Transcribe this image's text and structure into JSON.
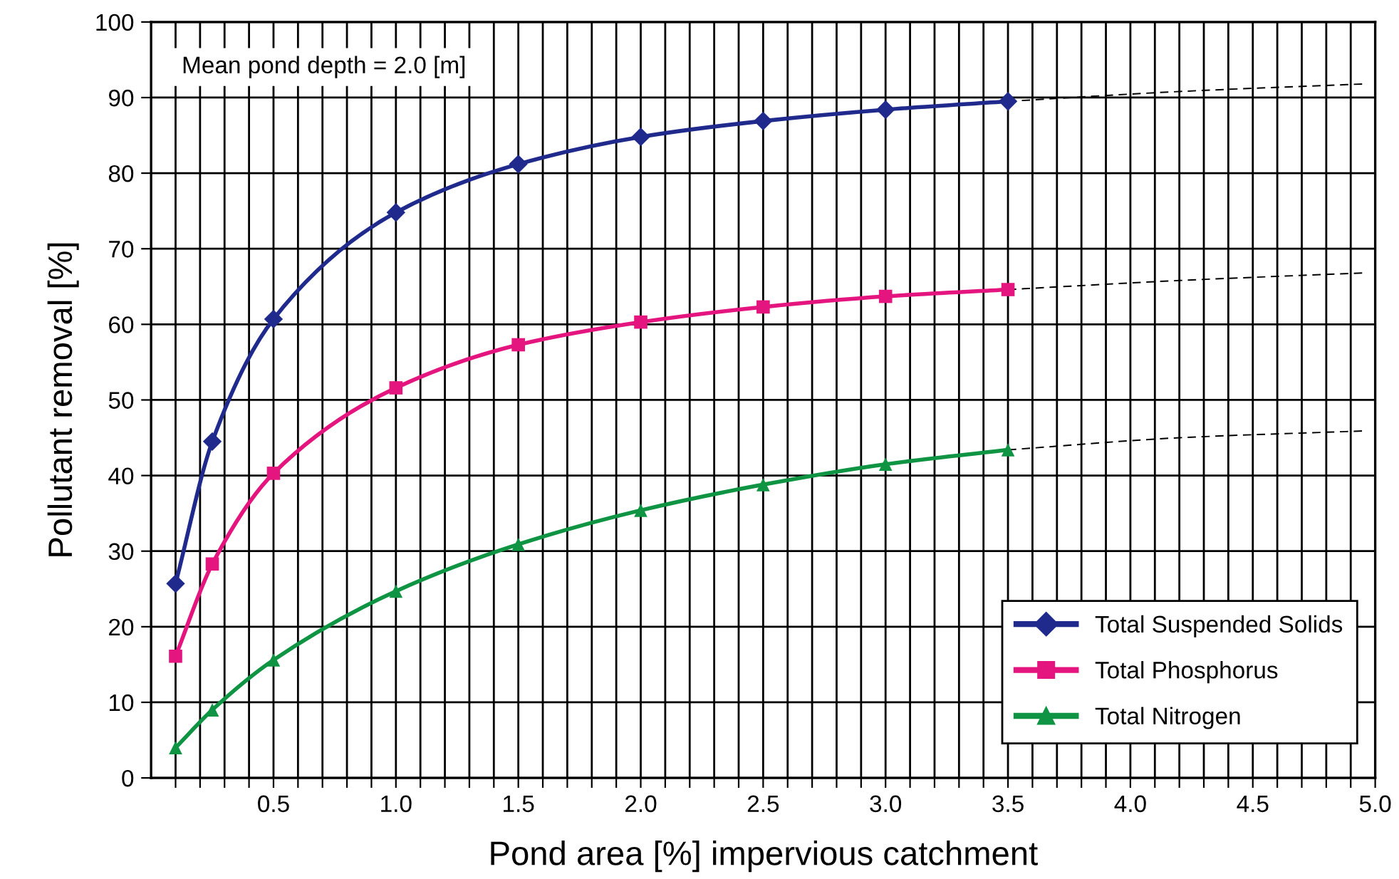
{
  "chart_data": {
    "type": "line",
    "xlabel": "Pond area [%] impervious catchment",
    "ylabel": "Pollutant removal [%]",
    "annotations": [
      "Mean pond depth = 2.0 [m]"
    ],
    "x": [
      0.1,
      0.25,
      0.5,
      1.0,
      1.5,
      2.0,
      2.5,
      3.0,
      3.5
    ],
    "series": [
      {
        "name": "Total Suspended Solids",
        "color": "#1f2a8c",
        "marker": "diamond",
        "values": [
          25.7,
          44.5,
          60.7,
          74.8,
          81.2,
          84.8,
          86.9,
          88.4,
          89.5
        ]
      },
      {
        "name": "Total Phosphorus",
        "color": "#e4157f",
        "marker": "square",
        "values": [
          16.1,
          28.3,
          40.3,
          51.6,
          57.3,
          60.3,
          62.3,
          63.7,
          64.6
        ]
      },
      {
        "name": "Total Nitrogen",
        "color": "#0f9443",
        "marker": "triangle",
        "values": [
          4.0,
          9.0,
          15.6,
          24.7,
          30.9,
          35.4,
          38.8,
          41.5,
          43.4
        ]
      },
      {
        "color": "#000000",
        "line_style": "dashed",
        "marker": "none",
        "x": [
          3.5,
          4.2,
          4.95
        ],
        "values": [
          89.5,
          90.8,
          91.8
        ]
      },
      {
        "color": "#000000",
        "line_style": "dashed",
        "marker": "none",
        "x": [
          3.5,
          4.2,
          4.95
        ],
        "values": [
          64.6,
          65.8,
          66.8
        ]
      },
      {
        "color": "#000000",
        "line_style": "dashed",
        "marker": "none",
        "x": [
          3.5,
          4.2,
          4.95
        ],
        "values": [
          43.4,
          45.0,
          45.9
        ]
      }
    ],
    "xlim": [
      0,
      5
    ],
    "xticks": [
      {
        "value": 0.1,
        "label": null
      },
      {
        "value": 0.2,
        "label": null
      },
      {
        "value": 0.3,
        "label": null
      },
      {
        "value": 0.4,
        "label": null
      },
      {
        "value": 0.5,
        "label": "0.5"
      },
      {
        "value": 0.6,
        "label": null
      },
      {
        "value": 0.7,
        "label": null
      },
      {
        "value": 0.8,
        "label": null
      },
      {
        "value": 0.9,
        "label": null
      },
      {
        "value": 1.0,
        "label": "1.0"
      },
      {
        "value": 1.1,
        "label": null
      },
      {
        "value": 1.2,
        "label": null
      },
      {
        "value": 1.3,
        "label": null
      },
      {
        "value": 1.4,
        "label": null
      },
      {
        "value": 1.5,
        "label": "1.5"
      },
      {
        "value": 1.6,
        "label": null
      },
      {
        "value": 1.7,
        "label": null
      },
      {
        "value": 1.8,
        "label": null
      },
      {
        "value": 1.9,
        "label": null
      },
      {
        "value": 2.0,
        "label": "2.0"
      },
      {
        "value": 2.1,
        "label": null
      },
      {
        "value": 2.2,
        "label": null
      },
      {
        "value": 2.3,
        "label": null
      },
      {
        "value": 2.4,
        "label": null
      },
      {
        "value": 2.5,
        "label": "2.5"
      },
      {
        "value": 2.6,
        "label": null
      },
      {
        "value": 2.7,
        "label": null
      },
      {
        "value": 2.8,
        "label": null
      },
      {
        "value": 2.9,
        "label": null
      },
      {
        "value": 3.0,
        "label": "3.0"
      },
      {
        "value": 3.1,
        "label": null
      },
      {
        "value": 3.2,
        "label": null
      },
      {
        "value": 3.3,
        "label": null
      },
      {
        "value": 3.4,
        "label": null
      },
      {
        "value": 3.5,
        "label": "3.5"
      },
      {
        "value": 3.6,
        "label": null
      },
      {
        "value": 3.7,
        "label": null
      },
      {
        "value": 3.8,
        "label": null
      },
      {
        "value": 3.9,
        "label": null
      },
      {
        "value": 4.0,
        "label": "4.0"
      },
      {
        "value": 4.1,
        "label": null
      },
      {
        "value": 4.2,
        "label": null
      },
      {
        "value": 4.3,
        "label": null
      },
      {
        "value": 4.4,
        "label": null
      },
      {
        "value": 4.5,
        "label": "4.5"
      },
      {
        "value": 4.6,
        "label": null
      },
      {
        "value": 4.7,
        "label": null
      },
      {
        "value": 4.8,
        "label": null
      },
      {
        "value": 4.9,
        "label": null
      },
      {
        "value": 5.0,
        "label": "5.0"
      }
    ],
    "ylim": [
      0,
      100
    ],
    "yticks": [
      0,
      10,
      20,
      30,
      40,
      50,
      60,
      70,
      80,
      90,
      100
    ],
    "grid": true,
    "legend": "bottom right",
    "line_style": "solid"
  }
}
